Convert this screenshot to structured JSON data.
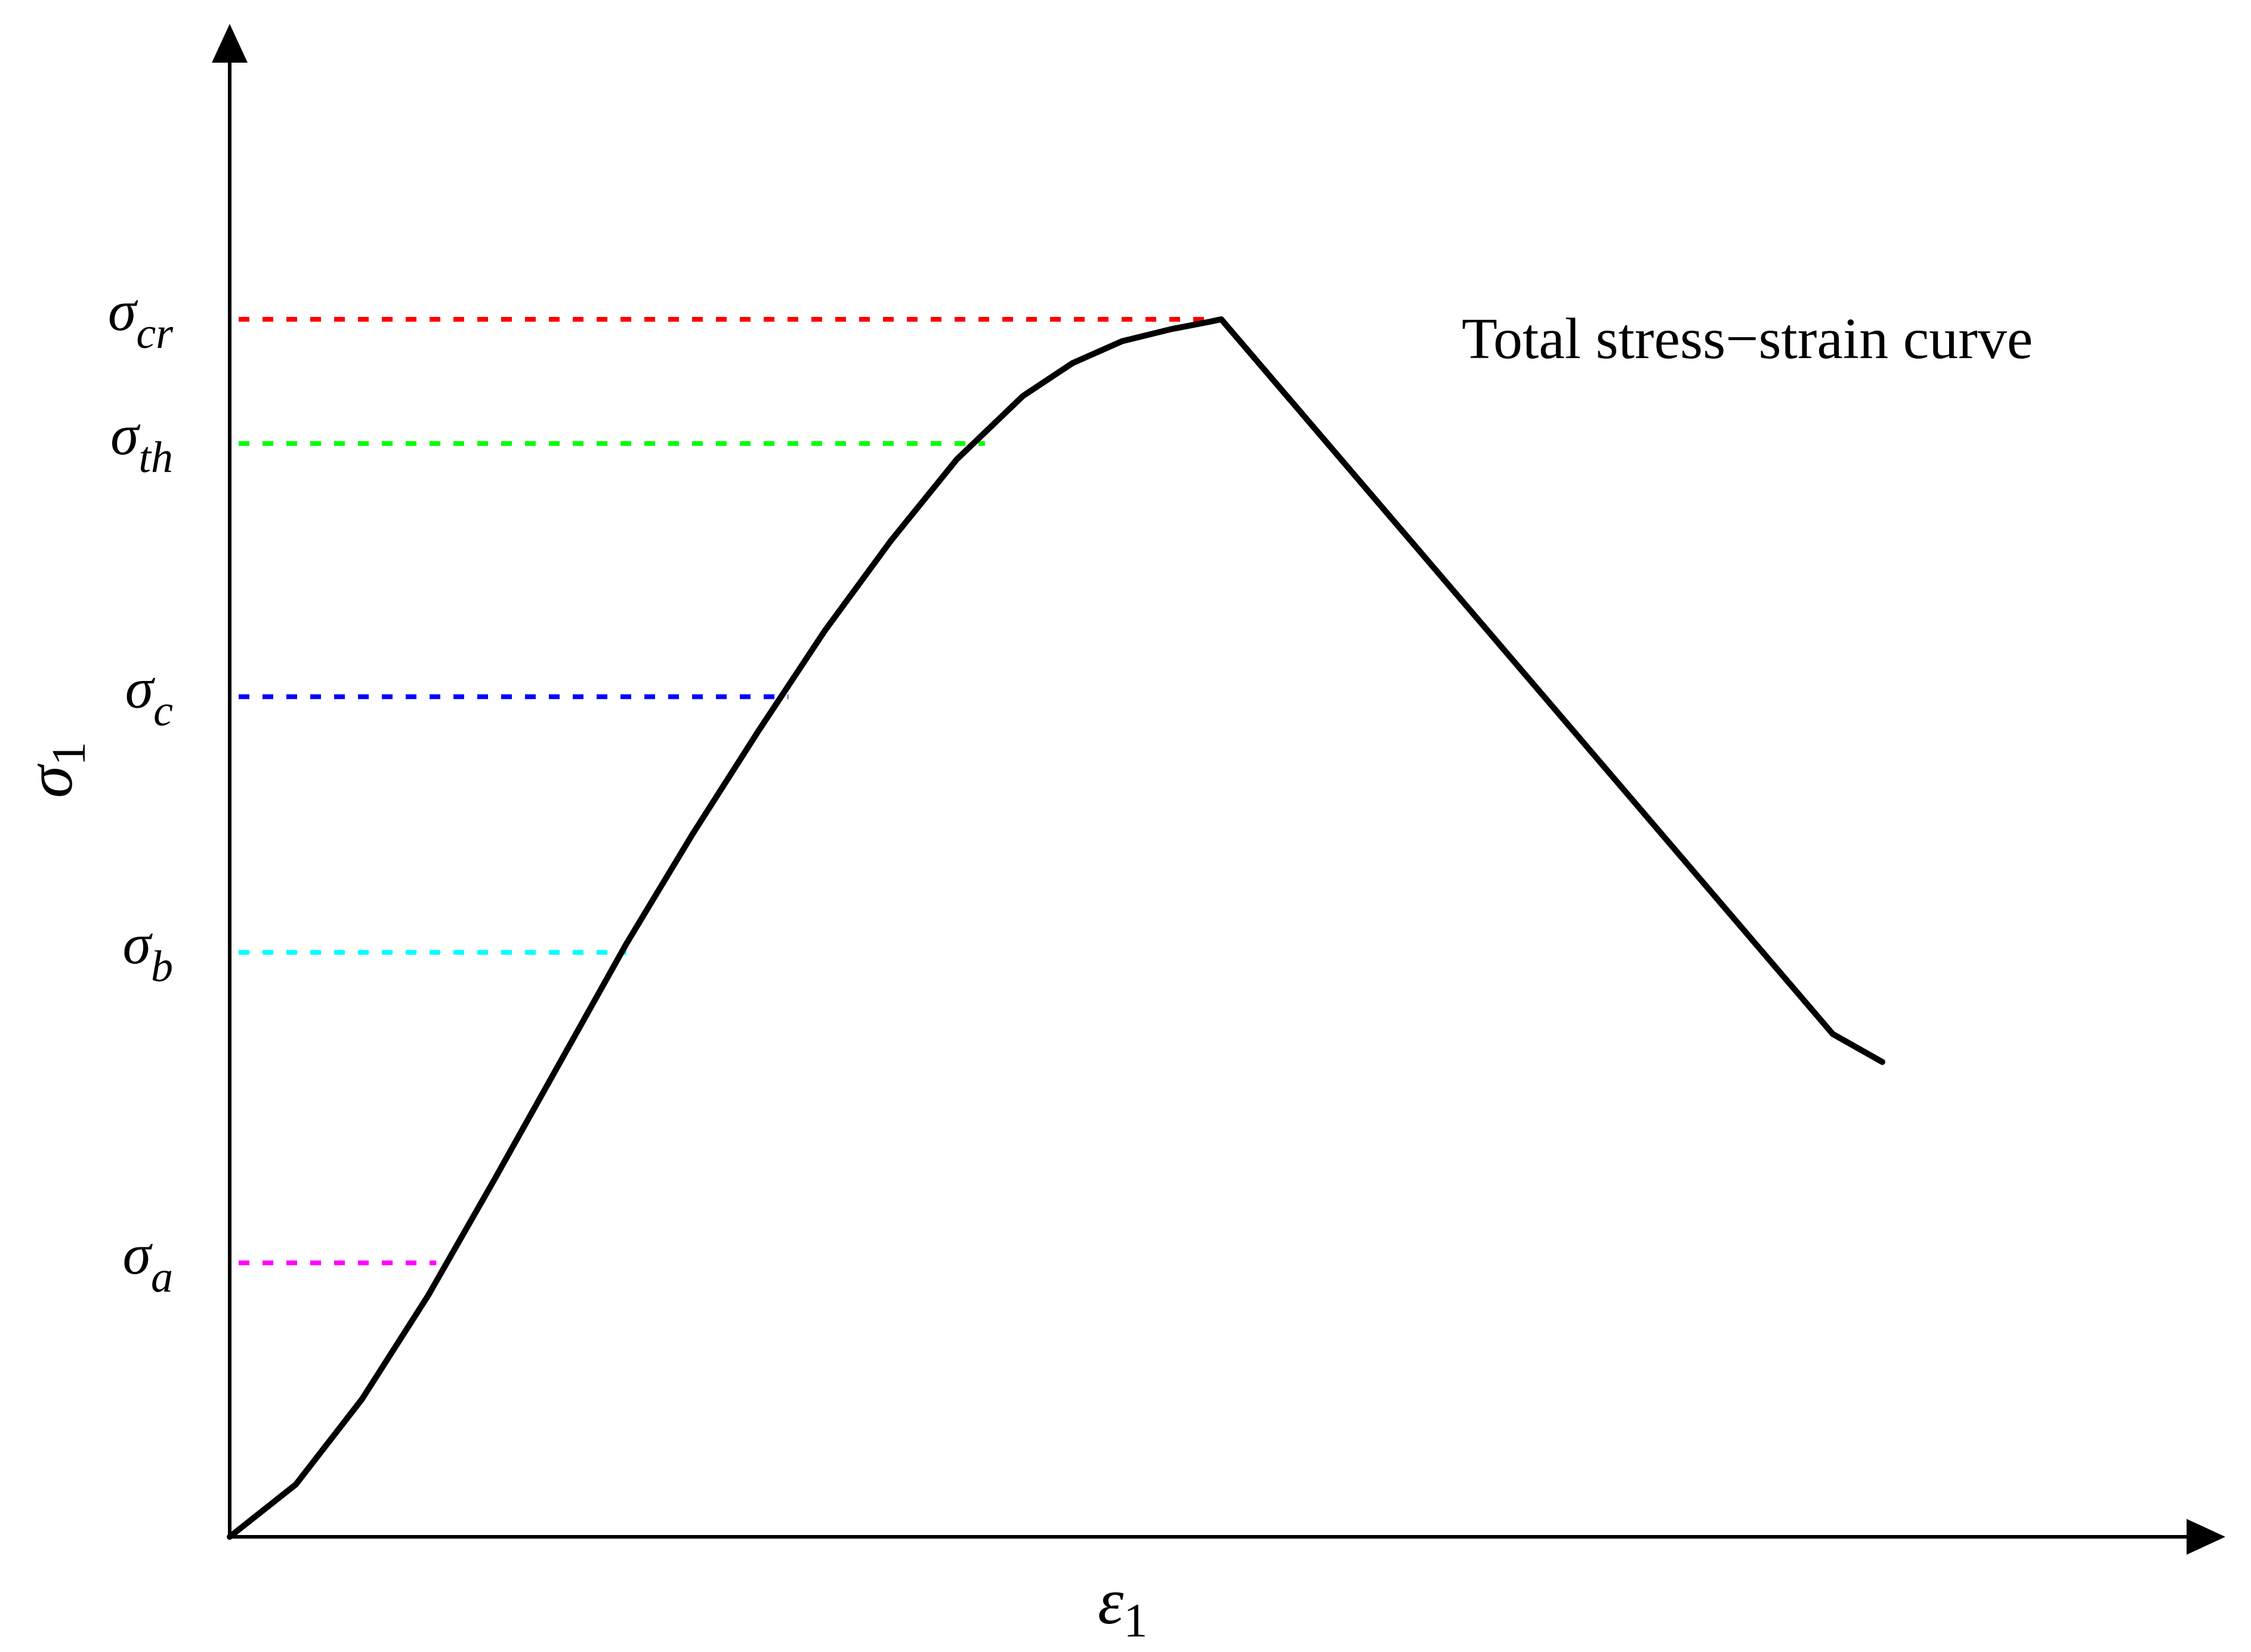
{
  "chart_data": {
    "type": "line",
    "title": "",
    "annotation": "Total stress−strain curve",
    "xlabel": {
      "symbol": "ε",
      "subscript": "1"
    },
    "ylabel": {
      "symbol": "σ",
      "subscript": "1"
    },
    "xlim": [
      0,
      1
    ],
    "ylim": [
      0,
      1
    ],
    "grid": false,
    "axis_ticks": false,
    "series": [
      {
        "color": "#000000",
        "points": [
          [
            0.0,
            0.0
          ],
          [
            0.04,
            0.043
          ],
          [
            0.08,
            0.113
          ],
          [
            0.12,
            0.198
          ],
          [
            0.16,
            0.293
          ],
          [
            0.2,
            0.39
          ],
          [
            0.24,
            0.487
          ],
          [
            0.28,
            0.577
          ],
          [
            0.32,
            0.662
          ],
          [
            0.36,
            0.744
          ],
          [
            0.4,
            0.818
          ],
          [
            0.44,
            0.885
          ],
          [
            0.48,
            0.937
          ],
          [
            0.51,
            0.964
          ],
          [
            0.54,
            0.982
          ],
          [
            0.57,
            0.992
          ],
          [
            0.593,
            0.998
          ],
          [
            0.6,
            1.0
          ],
          [
            0.97,
            0.413
          ],
          [
            1.0,
            0.39
          ]
        ]
      }
    ],
    "reference_lines": [
      {
        "symbol": "σ",
        "subscript": "cr",
        "y": 1.0,
        "x_end": 0.6,
        "color": "#ff0000"
      },
      {
        "symbol": "σ",
        "subscript": "th",
        "y": 0.898,
        "x_end": 0.457,
        "color": "#00ff00"
      },
      {
        "symbol": "σ",
        "subscript": "c",
        "y": 0.69,
        "x_end": 0.338,
        "color": "#0000ff"
      },
      {
        "symbol": "σ",
        "subscript": "b",
        "y": 0.48,
        "x_end": 0.24,
        "color": "#00ffff"
      },
      {
        "symbol": "σ",
        "subscript": "a",
        "y": 0.225,
        "x_end": 0.125,
        "color": "#ff00ff"
      }
    ]
  }
}
